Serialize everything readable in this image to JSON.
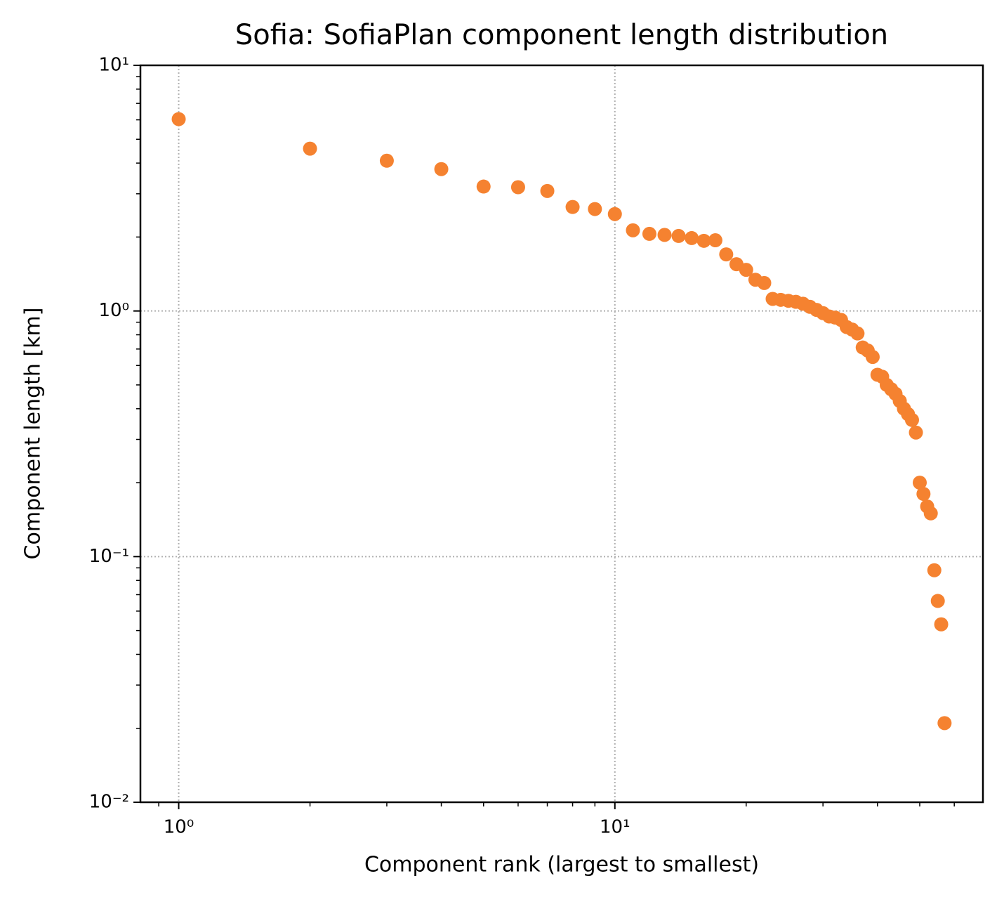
{
  "chart_data": {
    "type": "scatter",
    "title": "Sofia: SofiaPlan component length distribution",
    "x_label": "Component rank (largest to smallest)",
    "y_label": "Component length [km]",
    "x": [
      1,
      2,
      3,
      4,
      5,
      6,
      7,
      8,
      9,
      10,
      11,
      12,
      13,
      14,
      15,
      16,
      17,
      18,
      19,
      20,
      21,
      22,
      23,
      24,
      25,
      26,
      27,
      28,
      29,
      30,
      31,
      32,
      33,
      34,
      35,
      36,
      37,
      38,
      39,
      40,
      41,
      42,
      43,
      44,
      45,
      46,
      47,
      48,
      49,
      50,
      51,
      52,
      53,
      54,
      55,
      56,
      57
    ],
    "values": [
      6.04,
      4.58,
      4.09,
      3.78,
      3.21,
      3.19,
      3.08,
      2.65,
      2.6,
      2.48,
      2.13,
      2.06,
      2.04,
      2.02,
      1.98,
      1.93,
      1.94,
      1.7,
      1.55,
      1.47,
      1.34,
      1.3,
      1.12,
      1.11,
      1.1,
      1.09,
      1.07,
      1.04,
      1.01,
      0.98,
      0.95,
      0.94,
      0.92,
      0.86,
      0.84,
      0.81,
      0.71,
      0.69,
      0.65,
      0.55,
      0.54,
      0.5,
      0.48,
      0.46,
      0.43,
      0.4,
      0.38,
      0.36,
      0.32,
      0.2,
      0.18,
      0.16,
      0.15,
      0.088,
      0.066,
      0.053,
      0.021
    ],
    "color": "#f58230",
    "xlog": true,
    "ylog": true,
    "xlim": [
      0.817,
      69.8
    ],
    "ylim": [
      0.01,
      10
    ],
    "xticks": [
      {
        "value": 1,
        "label": "10⁰"
      },
      {
        "value": 10,
        "label": "10¹"
      }
    ],
    "yticks": [
      {
        "value": 0.01,
        "label": "10⁻²"
      },
      {
        "value": 0.1,
        "label": "10⁻¹"
      },
      {
        "value": 1,
        "label": "10⁰"
      },
      {
        "value": 10,
        "label": "10¹"
      }
    ],
    "xminorticks": [
      0.9,
      2,
      3,
      4,
      5,
      6,
      7,
      8,
      9,
      20,
      30,
      40,
      50,
      60
    ],
    "yminorticks": [
      0.02,
      0.03,
      0.04,
      0.05,
      0.06,
      0.07,
      0.08,
      0.09,
      0.2,
      0.3,
      0.4,
      0.5,
      0.6,
      0.7,
      0.8,
      0.9,
      2,
      3,
      4,
      5,
      6,
      7,
      8,
      9
    ],
    "grid": true
  }
}
